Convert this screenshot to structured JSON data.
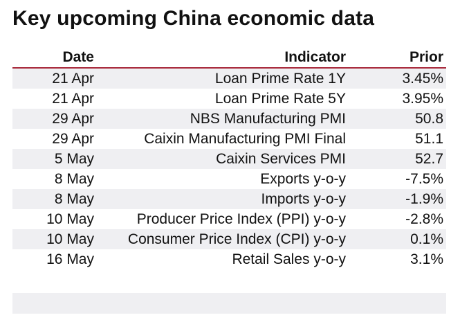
{
  "title": "Key upcoming China economic data",
  "table": {
    "headers": {
      "date": "Date",
      "indicator": "Indicator",
      "prior": "Prior"
    },
    "rows": [
      {
        "date": "21 Apr",
        "indicator": "Loan Prime Rate 1Y",
        "prior": "3.45%"
      },
      {
        "date": "21 Apr",
        "indicator": "Loan Prime Rate 5Y",
        "prior": "3.95%"
      },
      {
        "date": "29 Apr",
        "indicator": "NBS Manufacturing PMI",
        "prior": "50.8"
      },
      {
        "date": "29 Apr",
        "indicator": "Caixin Manufacturing PMI Final",
        "prior": "51.1"
      },
      {
        "date": "5 May",
        "indicator": "Caixin Services PMI",
        "prior": "52.7"
      },
      {
        "date": "8 May",
        "indicator": "Exports y-o-y",
        "prior": "-7.5%"
      },
      {
        "date": "8 May",
        "indicator": "Imports y-o-y",
        "prior": "-1.9%"
      },
      {
        "date": "10 May",
        "indicator": "Producer Price Index (PPI) y-o-y",
        "prior": "-2.8%"
      },
      {
        "date": "10 May",
        "indicator": "Consumer Price Index (CPI) y-o-y",
        "prior": "0.1%"
      },
      {
        "date": "16 May",
        "indicator": "Retail Sales y-o-y",
        "prior": "3.1%"
      }
    ]
  },
  "colors": {
    "header_rule": "#a8283a",
    "band": "#efeff2"
  }
}
